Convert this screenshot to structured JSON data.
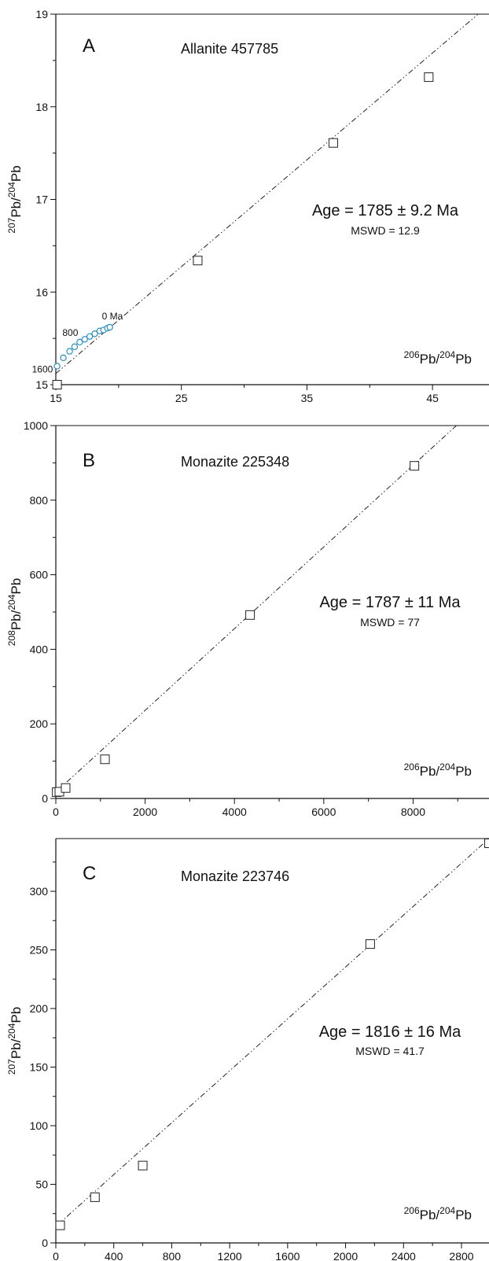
{
  "chart_data": [
    {
      "type": "scatter",
      "panel": "A",
      "title": "Allanite 457785",
      "xlabel": "206Pb/204Pb",
      "xlabel_parts": [
        "206",
        "Pb/",
        "204",
        "Pb"
      ],
      "ylabel": "207Pb/204Pb",
      "ylabel_parts": [
        "207",
        "Pb/",
        "204",
        "Pb"
      ],
      "age_text": "Age = 1785 ± 9.2 Ma",
      "mswd_text": "MSWD = 12.9",
      "xlim": [
        15,
        49.5
      ],
      "ylim": [
        15,
        19
      ],
      "xticks": [
        15,
        25,
        35,
        45
      ],
      "yticks": [
        15,
        16,
        17,
        18,
        19
      ],
      "series": [
        {
          "kind": "isochron",
          "values": [
            [
              15,
              15.12
            ],
            [
              49.5,
              19.1
            ]
          ]
        },
        {
          "kind": "data",
          "values": [
            [
              15.1,
              15.0
            ],
            [
              26.3,
              16.34
            ],
            [
              37.1,
              17.61
            ],
            [
              44.7,
              18.32
            ]
          ]
        },
        {
          "kind": "growth-curve",
          "values": [
            [
              15.1,
              15.2
            ],
            [
              15.6,
              15.29
            ],
            [
              16.1,
              15.36
            ],
            [
              16.5,
              15.41
            ],
            [
              16.9,
              15.46
            ],
            [
              17.3,
              15.49
            ],
            [
              17.7,
              15.52
            ],
            [
              18.1,
              15.55
            ],
            [
              18.5,
              15.58
            ],
            [
              18.8,
              15.59
            ],
            [
              19.1,
              15.61
            ],
            [
              19.3,
              15.62
            ]
          ]
        }
      ],
      "annotations": [
        {
          "text": "1600",
          "x": 15.1,
          "y": 15.2
        },
        {
          "text": "800",
          "x": 16.9,
          "y": 15.46
        },
        {
          "text": "0 Ma",
          "x": 19.3,
          "y": 15.62
        }
      ]
    },
    {
      "type": "scatter",
      "panel": "B",
      "title": "Monazite 225348",
      "xlabel": "206Pb/204Pb",
      "xlabel_parts": [
        "206",
        "Pb/",
        "204",
        "Pb"
      ],
      "ylabel": "208Pb/204Pb",
      "ylabel_parts": [
        "208",
        "Pb/",
        "204",
        "Pb"
      ],
      "age_text": "Age = 1787 ± 11 Ma",
      "mswd_text": "MSWD = 77",
      "xlim": [
        0,
        9700
      ],
      "ylim": [
        0,
        1000
      ],
      "xticks": [
        0,
        2000,
        4000,
        6000,
        8000
      ],
      "yticks": [
        0,
        200,
        400,
        600,
        800,
        1000
      ],
      "series": [
        {
          "kind": "isochron",
          "values": [
            [
              0,
              17
            ],
            [
              9700,
              1080
            ]
          ]
        },
        {
          "kind": "data",
          "values": [
            [
              20,
              17
            ],
            [
              80,
              18
            ],
            [
              220,
              28
            ],
            [
              1100,
              105
            ],
            [
              4350,
              492
            ],
            [
              8030,
              892
            ]
          ]
        }
      ]
    },
    {
      "type": "scatter",
      "panel": "C",
      "title": "Monazite 223746",
      "xlabel": "206Pb/204Pb",
      "xlabel_parts": [
        "206",
        "Pb/",
        "204",
        "Pb"
      ],
      "ylabel": "207Pb/204Pb",
      "ylabel_parts": [
        "207",
        "Pb/",
        "204",
        "Pb"
      ],
      "age_text": "Age = 1816 ± 16 Ma",
      "mswd_text": "MSWD = 41.7",
      "xlim": [
        0,
        2990
      ],
      "ylim": [
        0,
        345
      ],
      "xticks": [
        0,
        400,
        800,
        1200,
        1600,
        2000,
        2400,
        2800
      ],
      "yticks": [
        0,
        50,
        100,
        150,
        200,
        250,
        300
      ],
      "series": [
        {
          "kind": "isochron",
          "values": [
            [
              0,
              14
            ],
            [
              2990,
              345
            ]
          ]
        },
        {
          "kind": "data",
          "values": [
            [
              30,
              15
            ],
            [
              270,
              39
            ],
            [
              600,
              66
            ],
            [
              2170,
              255
            ],
            [
              2990,
              341
            ]
          ]
        }
      ]
    }
  ]
}
